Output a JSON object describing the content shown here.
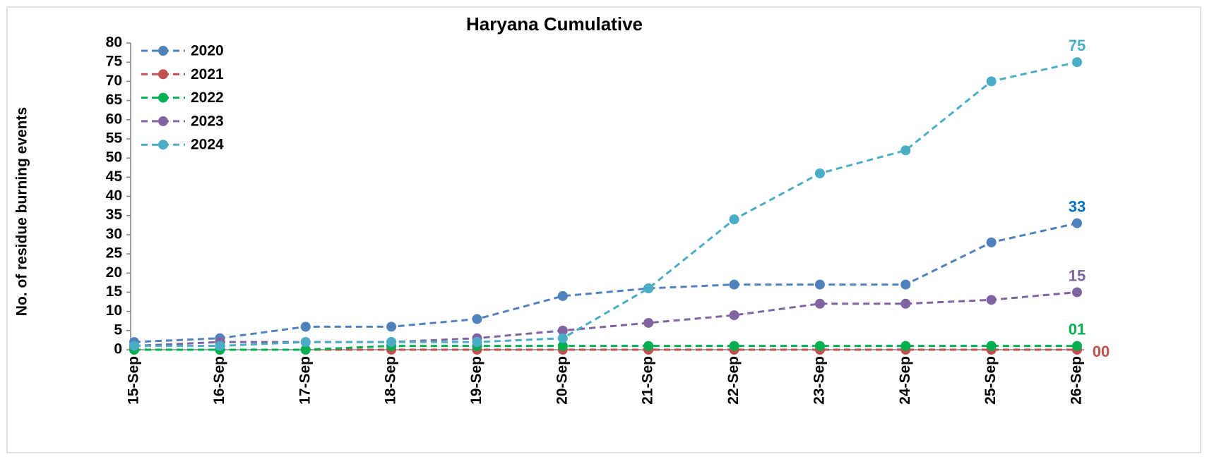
{
  "chart_data": {
    "type": "line",
    "title": "Haryana Cumulative",
    "ylabel": "No. of residue burning events",
    "categories": [
      "15-Sep",
      "16-Sep",
      "17-Sep",
      "18-Sep",
      "19-Sep",
      "20-Sep",
      "21-Sep",
      "22-Sep",
      "23-Sep",
      "24-Sep",
      "25-Sep",
      "26-Sep"
    ],
    "series": [
      {
        "name": "2020",
        "color": "#4f81bd",
        "label_color": "#0070c0",
        "values": [
          2,
          3,
          6,
          6,
          8,
          14,
          16,
          17,
          17,
          17,
          28,
          33
        ],
        "value_labels": [
          null,
          null,
          null,
          null,
          null,
          null,
          null,
          null,
          null,
          null,
          null,
          "33"
        ]
      },
      {
        "name": "2021",
        "color": "#c0504d",
        "label_color": "#c0504d",
        "values": [
          0,
          0,
          0,
          0,
          0,
          0,
          0,
          0,
          0,
          0,
          0,
          0
        ],
        "value_labels": [
          null,
          null,
          null,
          null,
          null,
          null,
          null,
          null,
          null,
          null,
          null,
          "00"
        ]
      },
      {
        "name": "2022",
        "color": "#00b050",
        "label_color": "#00b050",
        "values": [
          0,
          0,
          0,
          1,
          1,
          1,
          1,
          1,
          1,
          1,
          1,
          1
        ],
        "value_labels": [
          null,
          null,
          null,
          null,
          null,
          null,
          null,
          null,
          null,
          null,
          null,
          "01"
        ]
      },
      {
        "name": "2023",
        "color": "#8064a2",
        "label_color": "#8064a2",
        "values": [
          1,
          2,
          2,
          2,
          3,
          5,
          7,
          9,
          12,
          12,
          13,
          15
        ],
        "value_labels": [
          null,
          null,
          null,
          null,
          null,
          null,
          null,
          null,
          null,
          null,
          null,
          "15"
        ]
      },
      {
        "name": "2024",
        "color": "#4bacc6",
        "label_color": "#4bacc6",
        "values": [
          1,
          1,
          2,
          2,
          2,
          3,
          16,
          34,
          46,
          52,
          70,
          75
        ],
        "value_labels": [
          null,
          null,
          null,
          null,
          null,
          null,
          null,
          null,
          null,
          null,
          null,
          "75"
        ]
      }
    ],
    "ylim": [
      0,
      80
    ],
    "yticks": [
      0,
      5,
      10,
      15,
      20,
      25,
      30,
      35,
      40,
      45,
      50,
      55,
      60,
      65,
      70,
      75,
      80
    ],
    "grid": false,
    "legend": "upper left"
  }
}
